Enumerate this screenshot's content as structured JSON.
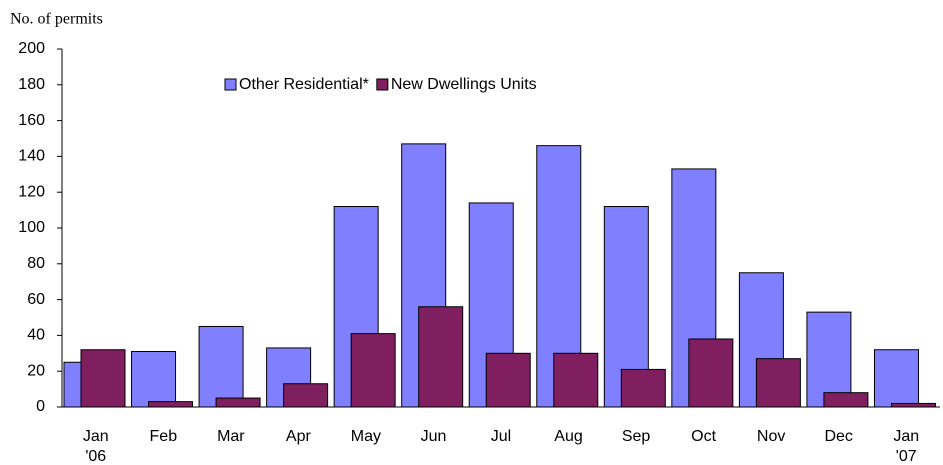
{
  "chart_data": {
    "type": "bar",
    "y_axis_label": "No. of permits",
    "categories": [
      "Jan\n'06",
      "Feb",
      "Mar",
      "Apr",
      "May",
      "Jun",
      "Jul",
      "Aug",
      "Sep",
      "Oct",
      "Nov",
      "Dec",
      "Jan\n'07"
    ],
    "series": [
      {
        "name": "Other Residential*",
        "color": "#8080ff",
        "values": [
          25,
          31,
          45,
          33,
          112,
          147,
          114,
          146,
          112,
          133,
          75,
          53,
          32
        ]
      },
      {
        "name": "New Dwellings Units",
        "color": "#7f1f5f",
        "values": [
          32,
          3,
          5,
          13,
          41,
          56,
          30,
          30,
          21,
          38,
          27,
          8,
          2
        ]
      }
    ],
    "ylim": [
      0,
      200
    ],
    "yticks": [
      0,
      20,
      40,
      60,
      80,
      100,
      120,
      140,
      160,
      180,
      200
    ],
    "grid": false,
    "legend": "top"
  }
}
